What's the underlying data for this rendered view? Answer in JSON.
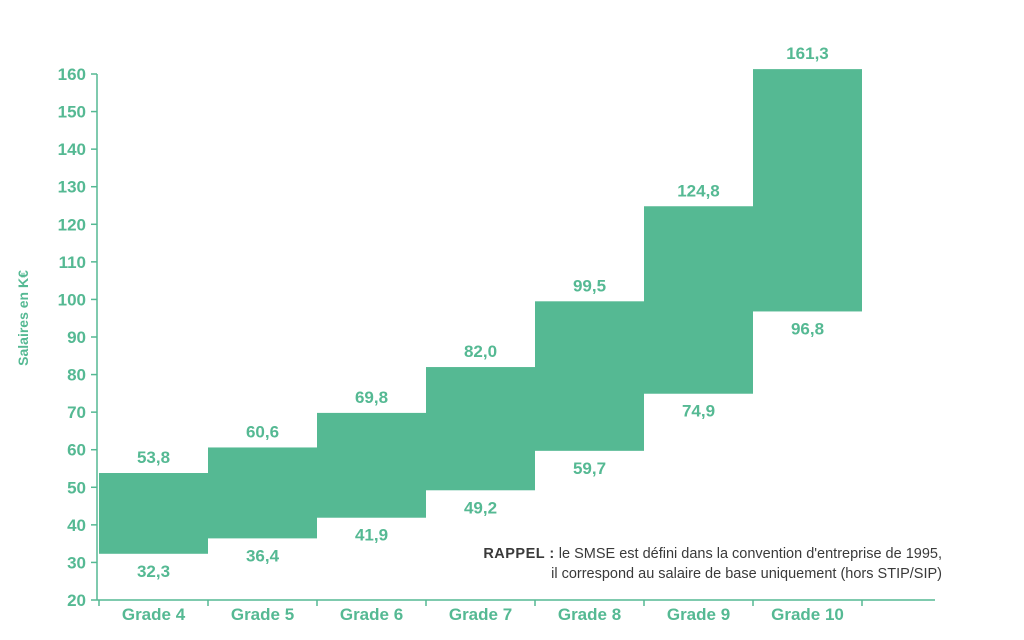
{
  "colors": {
    "accent": "#55b993",
    "text": "#3a3a3a"
  },
  "chart_data": {
    "type": "bar",
    "subtype": "floating-range",
    "categories": [
      "Grade 4",
      "Grade 5",
      "Grade 6",
      "Grade 7",
      "Grade 8",
      "Grade 9",
      "Grade 10"
    ],
    "low": [
      32.3,
      36.4,
      41.9,
      49.2,
      59.7,
      74.9,
      96.8
    ],
    "high": [
      53.8,
      60.6,
      69.8,
      82.0,
      99.5,
      124.8,
      161.3
    ],
    "low_labels": [
      "32,3",
      "36,4",
      "41,9",
      "49,2",
      "59,7",
      "74,9",
      "96,8"
    ],
    "high_labels": [
      "53,8",
      "60,6",
      "69,8",
      "82,0",
      "99,5",
      "124,8",
      "161,3"
    ],
    "ylabel": "Salaires en K€",
    "ylim": [
      20,
      160
    ],
    "yticks": [
      20,
      30,
      40,
      50,
      60,
      70,
      80,
      90,
      100,
      110,
      120,
      130,
      140,
      150,
      160
    ],
    "grid": false,
    "legend": "none"
  },
  "note": {
    "prefix": "RAPPEL :",
    "line1": "le SMSE est défini dans la convention d'entreprise de 1995,",
    "line2": "il correspond au salaire de base uniquement (hors STIP/SIP)"
  }
}
